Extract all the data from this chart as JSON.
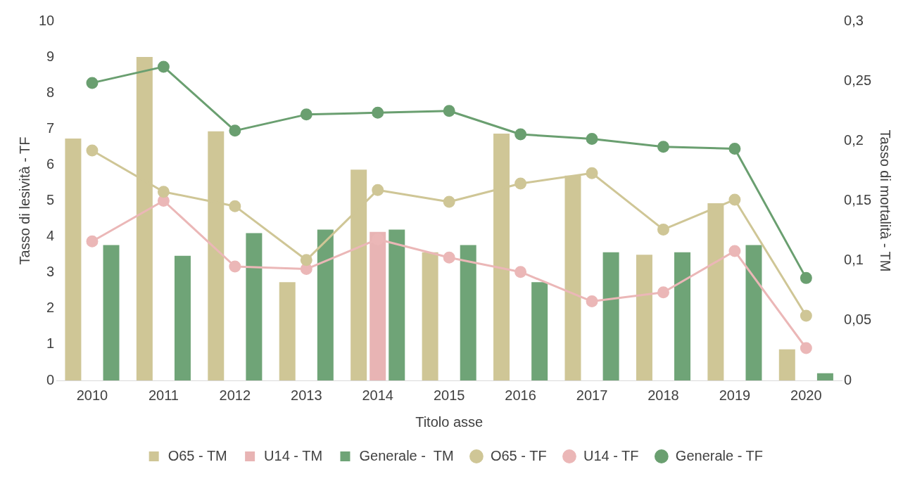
{
  "chart_data": {
    "type": "bar",
    "xlabel": "Titolo asse",
    "ylabel": "Tasso di lesività - TF",
    "y2label": "Tasso di mortalità - TM",
    "categories": [
      "2010",
      "2011",
      "2012",
      "2013",
      "2014",
      "2015",
      "2016",
      "2017",
      "2018",
      "2019",
      "2020"
    ],
    "series": [
      {
        "name": "O65 - TM",
        "axis": "y2",
        "color": "#cfc696",
        "values": [
          0.202,
          0.27,
          0.208,
          0.082,
          0.176,
          0.107,
          0.206,
          0.171,
          0.105,
          0.148,
          0.026
        ]
      },
      {
        "name": "U14 - TM",
        "axis": "y2",
        "color": "#e8b4b4",
        "values": [
          null,
          null,
          null,
          null,
          0.124,
          null,
          null,
          null,
          null,
          null,
          null
        ]
      },
      {
        "name": "Generale -  TM",
        "axis": "y2",
        "color": "#6fa477",
        "values": [
          0.113,
          0.104,
          0.123,
          0.126,
          0.126,
          0.113,
          0.082,
          0.107,
          0.107,
          0.113,
          0.006
        ]
      },
      {
        "name": "O65 - TF",
        "type": "line",
        "color": "#cfc696",
        "values": [
          6.4,
          5.25,
          4.85,
          3.35,
          5.3,
          4.97,
          5.48,
          5.77,
          4.2,
          5.03,
          1.8
        ]
      },
      {
        "name": "U14 - TF",
        "type": "line",
        "color": "#ebb7b7",
        "values": [
          3.87,
          5.0,
          3.17,
          3.1,
          3.93,
          3.42,
          3.02,
          2.2,
          2.45,
          3.6,
          0.9
        ]
      },
      {
        "name": "Generale - TF",
        "type": "line",
        "color": "#6a9f70",
        "values": [
          8.28,
          8.73,
          6.95,
          7.4,
          7.45,
          7.5,
          6.85,
          6.72,
          6.5,
          6.45,
          2.85
        ]
      }
    ],
    "ylim": [
      0,
      10
    ],
    "yticks": [
      0,
      1,
      2,
      3,
      4,
      5,
      6,
      7,
      8,
      9,
      10
    ],
    "y2lim": [
      0,
      0.3
    ],
    "y2ticks": [
      {
        "value": 0,
        "label": "0"
      },
      {
        "value": 0.05,
        "label": "0,05"
      },
      {
        "value": 0.1,
        "label": "0,1"
      },
      {
        "value": 0.15,
        "label": "0,15"
      },
      {
        "value": 0.2,
        "label": "0,2"
      },
      {
        "value": 0.25,
        "label": "0,25"
      },
      {
        "value": 0.3,
        "label": "0,3"
      }
    ],
    "grid": false,
    "legend": "bottom",
    "marker": "circle"
  }
}
